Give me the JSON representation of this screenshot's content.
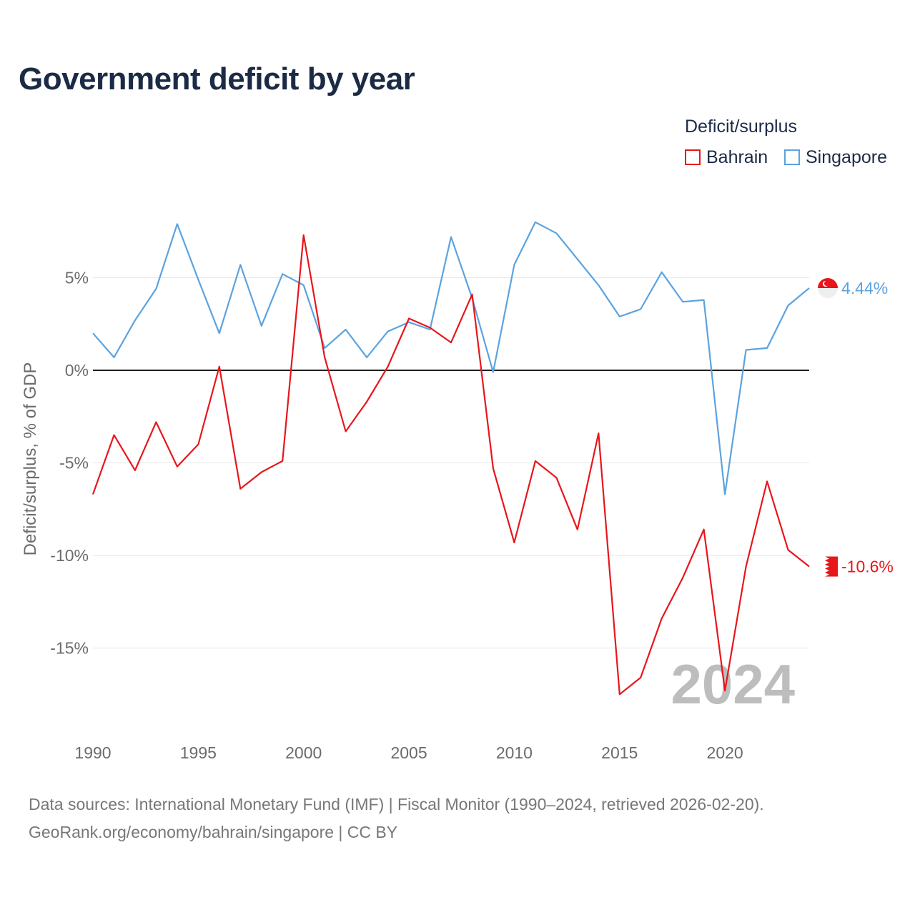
{
  "title": "Government deficit by year",
  "legend": {
    "title": "Deficit/surplus",
    "items": [
      {
        "label": "Bahrain",
        "color": "#e8161b"
      },
      {
        "label": "Singapore",
        "color": "#5ba3e0"
      }
    ]
  },
  "watermark_year": "2024",
  "footer": {
    "line1": "Data sources: International Monetary Fund (IMF) | Fiscal Monitor (1990–2024, retrieved 2026-02-20).",
    "line2": "GeoRank.org/economy/bahrain/singapore | CC BY"
  },
  "chart_data": {
    "type": "line",
    "title": "Government deficit by year",
    "xlabel": "",
    "ylabel": "Deficit/surplus, % of GDP",
    "xlim": [
      1990,
      2024
    ],
    "ylim": [
      -19,
      9
    ],
    "x_ticks": [
      1990,
      1995,
      2000,
      2005,
      2010,
      2015,
      2020
    ],
    "y_ticks": [
      {
        "value": 5,
        "label": "5%"
      },
      {
        "value": 0,
        "label": "0%"
      },
      {
        "value": -5,
        "label": "-5%"
      },
      {
        "value": -10,
        "label": "-10%"
      },
      {
        "value": -15,
        "label": "-15%"
      }
    ],
    "x": [
      1990,
      1991,
      1992,
      1993,
      1994,
      1995,
      1996,
      1997,
      1998,
      1999,
      2000,
      2001,
      2002,
      2003,
      2004,
      2005,
      2006,
      2007,
      2008,
      2009,
      2010,
      2011,
      2012,
      2013,
      2014,
      2015,
      2016,
      2017,
      2018,
      2019,
      2020,
      2021,
      2022,
      2023,
      2024
    ],
    "series": [
      {
        "name": "Singapore",
        "color": "#5ba3e0",
        "end_label": "4.44%",
        "values": [
          2.0,
          0.7,
          2.7,
          4.4,
          7.9,
          4.9,
          2.0,
          5.7,
          2.4,
          5.2,
          4.6,
          1.2,
          2.2,
          0.7,
          2.1,
          2.6,
          2.2,
          7.2,
          3.9,
          -0.1,
          5.7,
          8.0,
          7.4,
          6.0,
          4.6,
          2.9,
          3.3,
          5.3,
          3.7,
          3.8,
          -6.7,
          1.1,
          1.2,
          3.5,
          4.44
        ]
      },
      {
        "name": "Bahrain",
        "color": "#e8161b",
        "end_label": "-10.6%",
        "values": [
          -6.7,
          -3.5,
          -5.4,
          -2.8,
          -5.2,
          -4.0,
          0.2,
          -6.4,
          -5.5,
          -4.9,
          7.3,
          0.7,
          -3.3,
          -1.7,
          0.2,
          2.8,
          2.3,
          1.5,
          4.1,
          -5.3,
          -9.3,
          -4.9,
          -5.8,
          -8.6,
          -3.4,
          -17.5,
          -16.6,
          -13.4,
          -11.2,
          -8.6,
          -17.3,
          -10.6,
          -6.0,
          -9.7,
          -10.6
        ]
      }
    ]
  }
}
